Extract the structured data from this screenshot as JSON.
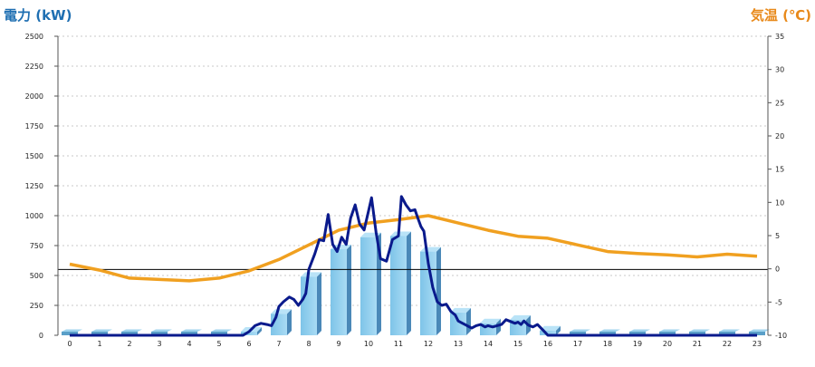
{
  "chart_data": {
    "type": "bar",
    "title_left": "電力 (kW)",
    "title_right": "気温 (℃)",
    "categories": [
      "0",
      "1",
      "2",
      "3",
      "4",
      "5",
      "6",
      "7",
      "8",
      "9",
      "10",
      "11",
      "12",
      "13",
      "14",
      "15",
      "16",
      "17",
      "18",
      "19",
      "20",
      "21",
      "22",
      "23"
    ],
    "left_axis": {
      "min": 0,
      "max": 2500,
      "ticks": [
        0,
        250,
        500,
        750,
        1000,
        1250,
        1500,
        1750,
        2000,
        2250,
        2500
      ]
    },
    "right_axis": {
      "min": -10,
      "max": 35,
      "ticks": [
        -10,
        -5,
        0,
        5,
        10,
        15,
        20,
        25,
        30,
        35
      ]
    },
    "bars": {
      "values": [
        0,
        0,
        0,
        0,
        0,
        0,
        30,
        180,
        490,
        720,
        820,
        830,
        700,
        190,
        100,
        130,
        40,
        0,
        0,
        0,
        0,
        0,
        0,
        0
      ],
      "color": "#87ceeb"
    },
    "power_line": {
      "color": "#0a1a8c",
      "points": [
        [
          0,
          0
        ],
        [
          1,
          0
        ],
        [
          2,
          0
        ],
        [
          3,
          0
        ],
        [
          4,
          0
        ],
        [
          5,
          0
        ],
        [
          5.8,
          0
        ],
        [
          6,
          30
        ],
        [
          6.2,
          80
        ],
        [
          6.4,
          100
        ],
        [
          6.6,
          90
        ],
        [
          6.75,
          80
        ],
        [
          6.9,
          150
        ],
        [
          7,
          240
        ],
        [
          7.15,
          280
        ],
        [
          7.35,
          320
        ],
        [
          7.5,
          300
        ],
        [
          7.65,
          250
        ],
        [
          7.8,
          300
        ],
        [
          7.9,
          350
        ],
        [
          8,
          550
        ],
        [
          8.2,
          680
        ],
        [
          8.35,
          800
        ],
        [
          8.5,
          790
        ],
        [
          8.65,
          1010
        ],
        [
          8.8,
          760
        ],
        [
          8.95,
          700
        ],
        [
          9.1,
          820
        ],
        [
          9.25,
          760
        ],
        [
          9.4,
          980
        ],
        [
          9.55,
          1090
        ],
        [
          9.7,
          930
        ],
        [
          9.85,
          880
        ],
        [
          10,
          1040
        ],
        [
          10.1,
          1150
        ],
        [
          10.25,
          860
        ],
        [
          10.4,
          640
        ],
        [
          10.6,
          620
        ],
        [
          10.8,
          800
        ],
        [
          11,
          830
        ],
        [
          11.1,
          1160
        ],
        [
          11.25,
          1090
        ],
        [
          11.4,
          1040
        ],
        [
          11.55,
          1050
        ],
        [
          11.65,
          980
        ],
        [
          11.75,
          910
        ],
        [
          11.85,
          870
        ],
        [
          12,
          600
        ],
        [
          12.15,
          400
        ],
        [
          12.3,
          280
        ],
        [
          12.45,
          250
        ],
        [
          12.6,
          260
        ],
        [
          12.75,
          200
        ],
        [
          12.9,
          170
        ],
        [
          13,
          120
        ],
        [
          13.15,
          100
        ],
        [
          13.3,
          80
        ],
        [
          13.45,
          60
        ],
        [
          13.6,
          80
        ],
        [
          13.75,
          90
        ],
        [
          13.9,
          70
        ],
        [
          14,
          80
        ],
        [
          14.15,
          70
        ],
        [
          14.3,
          80
        ],
        [
          14.45,
          90
        ],
        [
          14.6,
          130
        ],
        [
          14.75,
          115
        ],
        [
          14.9,
          100
        ],
        [
          15,
          110
        ],
        [
          15.1,
          90
        ],
        [
          15.2,
          120
        ],
        [
          15.35,
          85
        ],
        [
          15.5,
          70
        ],
        [
          15.65,
          90
        ],
        [
          15.85,
          40
        ],
        [
          16,
          0
        ],
        [
          17,
          0
        ],
        [
          18,
          0
        ],
        [
          19,
          0
        ],
        [
          20,
          0
        ],
        [
          21,
          0
        ],
        [
          22,
          0
        ],
        [
          23,
          0
        ]
      ]
    },
    "temperature_line": {
      "color": "#f0a020",
      "points": [
        [
          0,
          0.7
        ],
        [
          1,
          -0.2
        ],
        [
          2,
          -1.4
        ],
        [
          3,
          -1.6
        ],
        [
          4,
          -1.8
        ],
        [
          5,
          -1.4
        ],
        [
          6,
          -0.3
        ],
        [
          7,
          1.4
        ],
        [
          8,
          3.6
        ],
        [
          9,
          5.8
        ],
        [
          10,
          6.9
        ],
        [
          11,
          7.4
        ],
        [
          12,
          8
        ],
        [
          13,
          6.9
        ],
        [
          14,
          5.8
        ],
        [
          15,
          4.9
        ],
        [
          16,
          4.6
        ],
        [
          17,
          3.6
        ],
        [
          18,
          2.6
        ],
        [
          19,
          2.3
        ],
        [
          20,
          2.1
        ],
        [
          21,
          1.8
        ],
        [
          22,
          2.2
        ],
        [
          23,
          1.9
        ]
      ]
    },
    "reference_line": {
      "value": 550,
      "color": "#000000"
    },
    "grid": true
  }
}
